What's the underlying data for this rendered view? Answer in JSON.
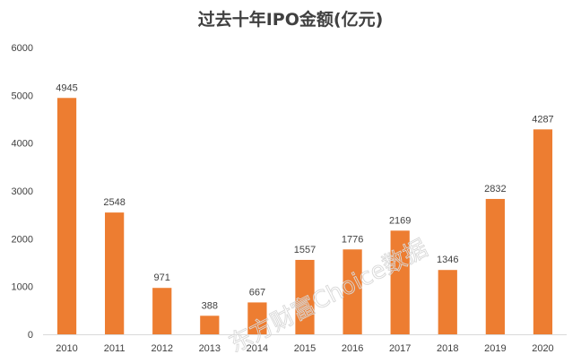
{
  "chart_data": {
    "type": "bar",
    "title": "过去十年IPO金额(亿元)",
    "xlabel": "",
    "ylabel": "",
    "categories": [
      "2010",
      "2011",
      "2012",
      "2013",
      "2014",
      "2015",
      "2016",
      "2017",
      "2018",
      "2019",
      "2020"
    ],
    "values": [
      4945,
      2548,
      971,
      388,
      667,
      1557,
      1776,
      2169,
      1346,
      2832,
      4287
    ],
    "ylim": [
      0,
      6000
    ],
    "yticks": [
      0,
      1000,
      2000,
      3000,
      4000,
      5000,
      6000
    ],
    "grid": false,
    "legend": "none",
    "data_labels": true,
    "bar_color": "#ED7D31",
    "axis_color": "#D9D9D9",
    "watermark": "东方财富Choice数据"
  }
}
